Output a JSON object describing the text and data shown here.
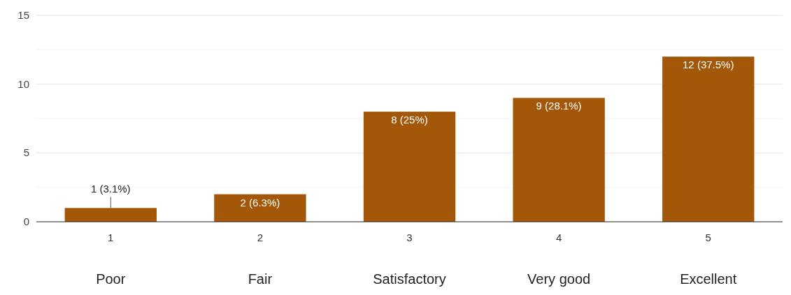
{
  "chart_data": {
    "type": "bar",
    "categories": [
      "1",
      "2",
      "3",
      "4",
      "5"
    ],
    "values": [
      1,
      2,
      8,
      9,
      12
    ],
    "color": "#a35709",
    "value_labels": [
      "1 (3.1%)",
      "2 (6.3%)",
      "8 (25%)",
      "9 (28.1%)",
      "12 (37.5%)"
    ],
    "ylim": [
      0,
      15
    ],
    "yticks": [
      0,
      {
        "value": 2.5,
        "label": null
      },
      5,
      {
        "value": 7.5,
        "label": null
      },
      10,
      {
        "value": 12.5,
        "label": null
      },
      15
    ],
    "grid": "y",
    "annotations": [
      "Poor",
      "Fair",
      "Satisfactory",
      "Very good",
      "Excellent"
    ]
  }
}
